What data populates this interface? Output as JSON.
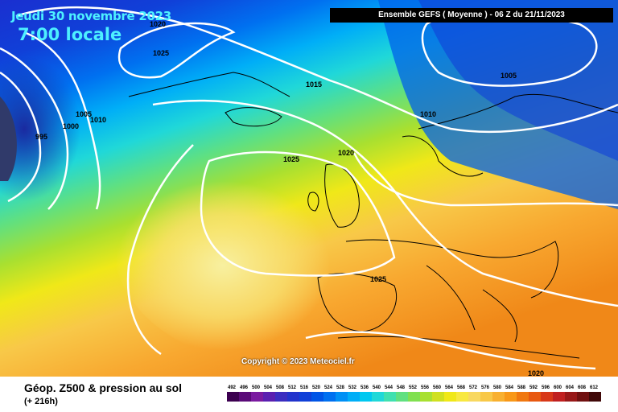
{
  "map": {
    "date_label": "Jeudi 30 novembre 2023",
    "time_label": "7:00 locale",
    "banner": "Ensemble GEFS  ( Moyenne )  - 06 Z du 21/11/2023",
    "copyright": "Copyright © 2023 Meteociel.fr",
    "legend_title": "Géop. Z500 & pression au sol",
    "legend_subtitle": "(+ 216h)",
    "isobar_labels": [
      "1020",
      "1025",
      "1015",
      "1005",
      "1010",
      "1005",
      "1000",
      "995",
      "1010",
      "1025",
      "1020",
      "1025",
      "1020"
    ],
    "scale_values": [
      492,
      496,
      500,
      504,
      508,
      512,
      516,
      520,
      524,
      528,
      532,
      536,
      540,
      544,
      548,
      552,
      556,
      560,
      564,
      568,
      572,
      576,
      580,
      584,
      588,
      592,
      596,
      600,
      604,
      608,
      612
    ],
    "scale_colors": [
      "#3c0050",
      "#5a0a78",
      "#7a1aa0",
      "#5a1fb0",
      "#3b2dc0",
      "#2233cc",
      "#1040d8",
      "#0055e6",
      "#0070f0",
      "#0090f5",
      "#00aef7",
      "#00c8f0",
      "#20d8d8",
      "#40e0b0",
      "#60e080",
      "#80e050",
      "#a8e030",
      "#d0e020",
      "#f0e818",
      "#f8e840",
      "#f8d860",
      "#f8c848",
      "#f8b030",
      "#f89818",
      "#f07810",
      "#e85810",
      "#d83818",
      "#c02020",
      "#981818",
      "#701010",
      "#400808"
    ],
    "colors": {
      "deep_blue": "#1a3fd8",
      "cyan": "#00c8f0",
      "green": "#80e050",
      "yellow": "#f8e840",
      "orange": "#f89818",
      "isobar": "#ffffff"
    }
  }
}
